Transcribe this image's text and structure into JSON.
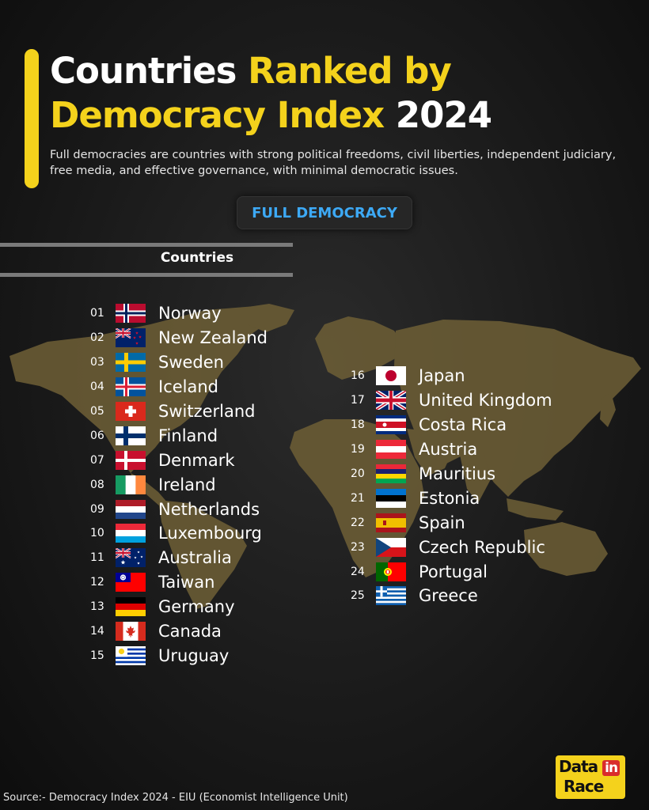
{
  "header": {
    "title_part1": "Countries ",
    "title_part2": "Ranked by",
    "title_part3": "Democracy Index",
    "title_part4": " 2024",
    "subtitle": "Full democracies are countries with strong political freedoms, civil liberties, independent judiciary, free media, and effective governance, with minimal democratic issues.",
    "accent_color": "#f4d21c"
  },
  "badge": {
    "label": "FULL DEMOCRACY",
    "color": "#3da9f5"
  },
  "table": {
    "column_header": "Countries"
  },
  "countries_left": [
    {
      "rank": "01",
      "name": "Norway",
      "flag": "norway-flag"
    },
    {
      "rank": "02",
      "name": "New Zealand",
      "flag": "new-zealand-flag"
    },
    {
      "rank": "03",
      "name": "Sweden",
      "flag": "sweden-flag"
    },
    {
      "rank": "04",
      "name": "Iceland",
      "flag": "iceland-flag"
    },
    {
      "rank": "05",
      "name": "Switzerland",
      "flag": "switzerland-flag"
    },
    {
      "rank": "06",
      "name": "Finland",
      "flag": "finland-flag"
    },
    {
      "rank": "07",
      "name": "Denmark",
      "flag": "denmark-flag"
    },
    {
      "rank": "08",
      "name": "Ireland",
      "flag": "ireland-flag"
    },
    {
      "rank": "09",
      "name": "Netherlands",
      "flag": "netherlands-flag"
    },
    {
      "rank": "10",
      "name": "Luxembourg",
      "flag": "luxembourg-flag"
    },
    {
      "rank": "11",
      "name": "Australia",
      "flag": "australia-flag"
    },
    {
      "rank": "12",
      "name": "Taiwan",
      "flag": "taiwan-flag"
    },
    {
      "rank": "13",
      "name": "Germany",
      "flag": "germany-flag"
    },
    {
      "rank": "14",
      "name": "Canada",
      "flag": "canada-flag"
    },
    {
      "rank": "15",
      "name": "Uruguay",
      "flag": "uruguay-flag"
    }
  ],
  "countries_right": [
    {
      "rank": "16",
      "name": "Japan",
      "flag": "japan-flag"
    },
    {
      "rank": "17",
      "name": "United Kingdom",
      "flag": "united-kingdom-flag"
    },
    {
      "rank": "18",
      "name": "Costa Rica",
      "flag": "costa-rica-flag"
    },
    {
      "rank": "19",
      "name": "Austria",
      "flag": "austria-flag"
    },
    {
      "rank": "20",
      "name": "Mauritius",
      "flag": "mauritius-flag"
    },
    {
      "rank": "21",
      "name": "Estonia",
      "flag": "estonia-flag"
    },
    {
      "rank": "22",
      "name": "Spain",
      "flag": "spain-flag"
    },
    {
      "rank": "23",
      "name": "Czech Republic",
      "flag": "czech-republic-flag"
    },
    {
      "rank": "24",
      "name": "Portugal",
      "flag": "portugal-flag"
    },
    {
      "rank": "25",
      "name": "Greece",
      "flag": "greece-flag"
    }
  ],
  "footer": {
    "source": "Source:- Democracy Index 2024 - EIU (Economist Intelligence Unit)",
    "logo_word1": "Data",
    "logo_word2": "in",
    "logo_word3": "Race"
  }
}
